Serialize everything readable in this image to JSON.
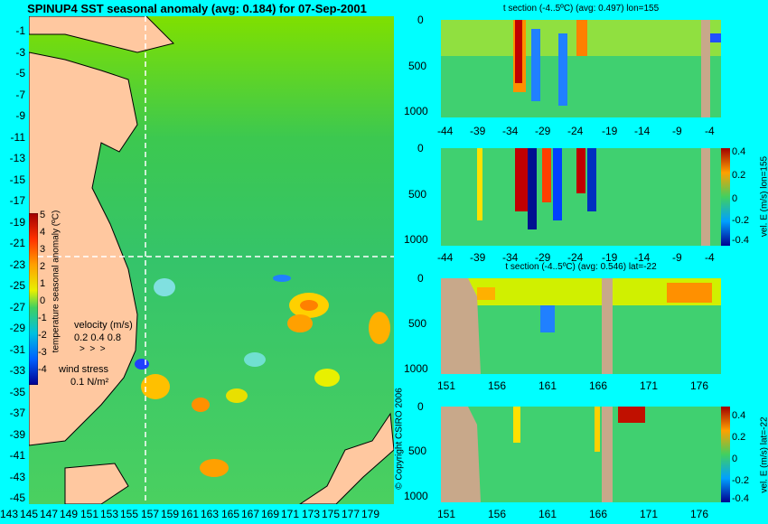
{
  "main_map": {
    "title": "SPINUP4 SST seasonal anomaly (avg: 0.184) for 07-Sep-2001",
    "y_ticks": [
      "-1",
      "-3",
      "-5",
      "-7",
      "-9",
      "-11",
      "-13",
      "-15",
      "-17",
      "-19",
      "-21",
      "-23",
      "-25",
      "-27",
      "-29",
      "-31",
      "-33",
      "-35",
      "-37",
      "-39",
      "-41",
      "-43",
      "-45"
    ],
    "x_ticks": [
      "143",
      "145",
      "147",
      "149",
      "151",
      "153",
      "155",
      "157",
      "159",
      "161",
      "163",
      "165",
      "167",
      "169",
      "171",
      "173",
      "175",
      "177",
      "179"
    ],
    "colorbar": {
      "label": "temperature seasonal anomaly (ºC)",
      "ticks": [
        "5",
        "4",
        "3",
        "2",
        "1",
        "0",
        "-1",
        "-2",
        "-3",
        "-4"
      ]
    },
    "velocity_legend": {
      "label": "velocity (m/s)",
      "scale": "0.2 0.4 0.8"
    },
    "wind_legend": {
      "label": "wind stress",
      "scale": "0.1 N/m²"
    },
    "copyright": "© Copyright CSIRO 2006"
  },
  "panels": [
    {
      "title": "t section (-4..5ºC) (avg: 0.497) lon=155",
      "y_ticks": [
        "0",
        "500",
        "1000"
      ],
      "x_ticks": [
        "-44",
        "-39",
        "-34",
        "-29",
        "-24",
        "-19",
        "-14",
        "-9",
        "-4"
      ]
    },
    {
      "title": "",
      "y_ticks": [
        "0",
        "500",
        "1000"
      ],
      "x_ticks": [
        "-44",
        "-39",
        "-34",
        "-29",
        "-24",
        "-19",
        "-14",
        "-9",
        "-4"
      ],
      "colorbar_label": "vel. E (m/s) lon=155",
      "colorbar_ticks": [
        "0.4",
        "0.2",
        "0",
        "-0.2",
        "-0.4"
      ]
    },
    {
      "title": "t section (-4..5ºC) (avg: 0.546) lat=-22",
      "y_ticks": [
        "0",
        "500",
        "1000"
      ],
      "x_ticks": [
        "151",
        "156",
        "161",
        "166",
        "171",
        "176"
      ]
    },
    {
      "title": "",
      "y_ticks": [
        "0",
        "500",
        "1000"
      ],
      "x_ticks": [
        "151",
        "156",
        "161",
        "166",
        "171",
        "176"
      ],
      "colorbar_label": "vel. E (m/s) lat=-22",
      "colorbar_ticks": [
        "0.4",
        "0.2",
        "0",
        "-0.2",
        "-0.4"
      ]
    }
  ]
}
